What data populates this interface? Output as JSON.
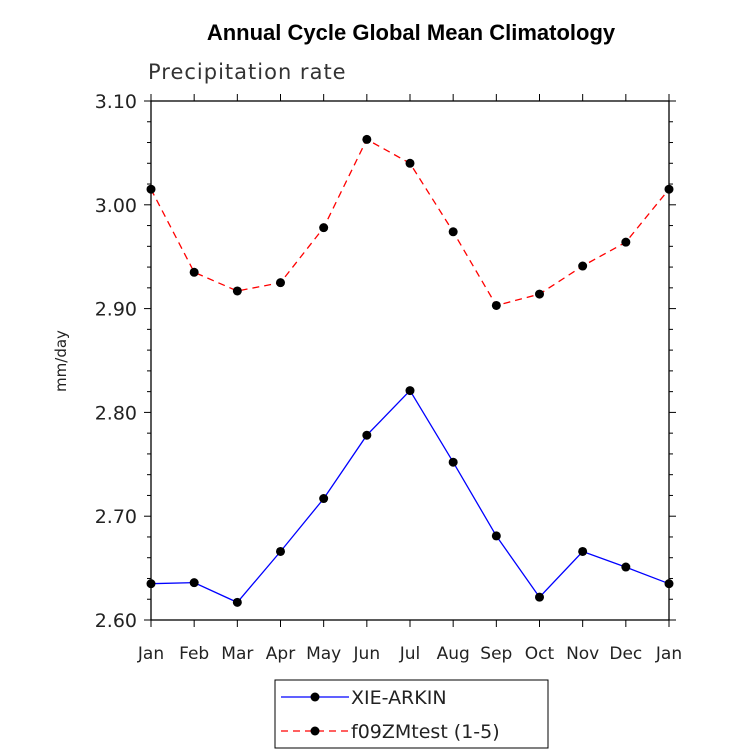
{
  "chart_data": {
    "type": "line",
    "title": "Annual Cycle Global Mean Climatology",
    "subtitle": "Precipitation rate",
    "xlabel": "",
    "ylabel": "mm/day",
    "ylim": [
      2.6,
      3.1
    ],
    "yticks": [
      "2.60",
      "2.70",
      "2.80",
      "2.90",
      "3.00",
      "3.10"
    ],
    "categories": [
      "Jan",
      "Feb",
      "Mar",
      "Apr",
      "May",
      "Jun",
      "Jul",
      "Aug",
      "Sep",
      "Oct",
      "Nov",
      "Dec",
      "Jan"
    ],
    "grid": false,
    "legend_position": "bottom-center",
    "series": [
      {
        "name": "XIE-ARKIN",
        "color": "#0000ff",
        "dash": "solid",
        "values": [
          2.635,
          2.636,
          2.617,
          2.666,
          2.717,
          2.778,
          2.821,
          2.752,
          2.681,
          2.622,
          2.666,
          2.651,
          2.635
        ]
      },
      {
        "name": "f09ZMtest (1-5)",
        "color": "#ff0000",
        "dash": "dashed",
        "values": [
          3.015,
          2.935,
          2.917,
          2.925,
          2.978,
          3.063,
          3.04,
          2.974,
          2.903,
          2.914,
          2.941,
          2.964,
          3.015
        ]
      }
    ]
  }
}
